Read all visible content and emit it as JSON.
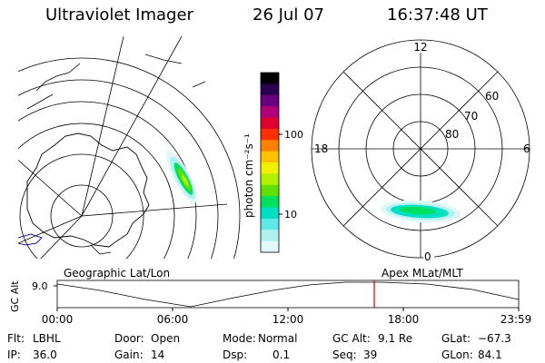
{
  "header": {
    "instrument": "Ultraviolet Imager",
    "date": "26 Jul 07",
    "time": "16:37:48 UT"
  },
  "colorbar": {
    "label": "photon cm⁻²s⁻¹",
    "ticks": [
      "100",
      "10"
    ],
    "tick_values": [
      100,
      10
    ],
    "colors": [
      "#000000",
      "#2a0050",
      "#6a0080",
      "#b0007a",
      "#e00030",
      "#ff3000",
      "#ff8000",
      "#ffc000",
      "#f0f000",
      "#b0f000",
      "#60e000",
      "#00e060",
      "#00e0c0",
      "#60e8e8",
      "#b0f0f0",
      "#e0f8f8"
    ]
  },
  "geo_map": {
    "label": "Geographic Lat/Lon"
  },
  "polar_plot": {
    "label": "Apex MLat/MLT",
    "mlt_labels": {
      "top": "12",
      "left": "18",
      "right": "6",
      "bottom": "0"
    },
    "lat_labels": [
      "60",
      "70",
      "80"
    ]
  },
  "timeline": {
    "ylabel": "GC Alt",
    "yvalue": "9.0",
    "xticks": [
      "00:00",
      "06:00",
      "12:00",
      "18:00",
      "23:59"
    ],
    "marker_time": "16:37"
  },
  "info": {
    "flt": {
      "label": "Flt:",
      "value": "LBHL"
    },
    "ip": {
      "label": "IP:",
      "value": "36.0"
    },
    "door": {
      "label": "Door:",
      "value": "Open"
    },
    "gain": {
      "label": "Gain:",
      "value": "14"
    },
    "mode": {
      "label": "Mode:",
      "value": "Normal"
    },
    "dsp": {
      "label": "Dsp:",
      "value": "0.1"
    },
    "gcalt": {
      "label": "GC Alt:",
      "value": "9.1 Re"
    },
    "seq": {
      "label": "Seq:",
      "value": "39"
    },
    "glat": {
      "label": "GLat:",
      "value": "−67.3"
    },
    "glon": {
      "label": "GLon:",
      "value": "84.1"
    }
  }
}
